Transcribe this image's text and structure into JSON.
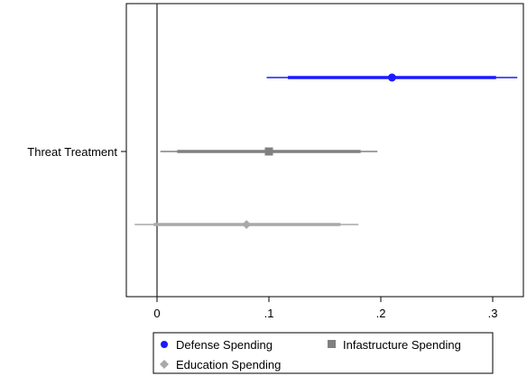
{
  "chart_data": {
    "type": "scatter",
    "subtype": "coefficient-plot",
    "title": "",
    "xlabel": "",
    "ylabel": "",
    "categories": [
      "Threat Treatment"
    ],
    "xlim": [
      -0.025,
      0.325
    ],
    "x_ticks": [
      0,
      0.1,
      0.2,
      0.3
    ],
    "x_tick_labels": [
      "0",
      ".1",
      ".2",
      ".3"
    ],
    "reference_line_x": 0,
    "grid": false,
    "legend_position": "bottom",
    "series": [
      {
        "name": "Defense Spending",
        "estimate": 0.21,
        "ci90": [
          0.117,
          0.303
        ],
        "ci95": [
          0.098,
          0.322
        ],
        "marker": "circle",
        "color": "#1a1aff"
      },
      {
        "name": "Infastructure Spending",
        "estimate": 0.1,
        "ci90": [
          0.018,
          0.182
        ],
        "ci95": [
          0.003,
          0.197
        ],
        "marker": "square",
        "color": "#808080"
      },
      {
        "name": "Education Spending",
        "estimate": 0.08,
        "ci90": [
          -0.003,
          0.164
        ],
        "ci95": [
          -0.02,
          0.18
        ],
        "marker": "diamond",
        "color": "#a9a9a9"
      }
    ]
  }
}
